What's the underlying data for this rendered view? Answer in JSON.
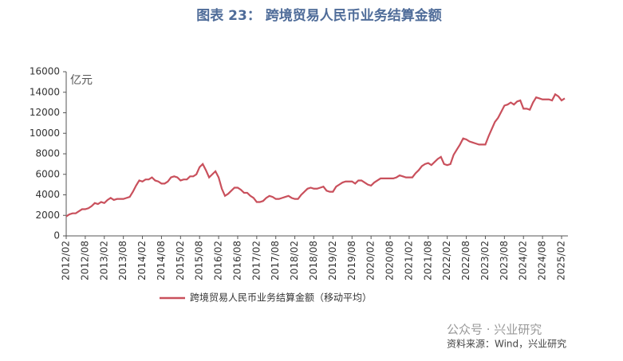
{
  "chart_data": {
    "type": "line",
    "title": "图表 23：  跨境贸易人民币业务结算金额",
    "y_unit": "亿元",
    "source": "资料来源：Wind，兴业研究",
    "watermark": "公众号 · 兴业研究",
    "categories": [
      "2012/02",
      null,
      null,
      null,
      null,
      null,
      "2012/08",
      null,
      null,
      null,
      null,
      null,
      "2013/02",
      null,
      null,
      null,
      null,
      null,
      "2013/08",
      null,
      null,
      null,
      null,
      null,
      "2014/02",
      null,
      null,
      null,
      null,
      null,
      "2014/08",
      null,
      null,
      null,
      null,
      null,
      "2015/02",
      null,
      null,
      null,
      null,
      null,
      "2015/08",
      null,
      null,
      null,
      null,
      null,
      "2016/02",
      null,
      null,
      null,
      null,
      null,
      "2016/08",
      null,
      null,
      null,
      null,
      null,
      "2017/02",
      null,
      null,
      null,
      null,
      null,
      "2017/08",
      null,
      null,
      null,
      null,
      null,
      "2018/02",
      null,
      null,
      null,
      null,
      null,
      "2018/08",
      null,
      null,
      null,
      null,
      null,
      "2019/02",
      null,
      null,
      null,
      null,
      null,
      "2019/08",
      null,
      null,
      null,
      null,
      null,
      "2020/02",
      null,
      null,
      null,
      null,
      null,
      "2020/08",
      null,
      null,
      null,
      null,
      null,
      "2021/02",
      null,
      null,
      null,
      null,
      null,
      "2021/08",
      null,
      null,
      null,
      null,
      null,
      "2022/02",
      null,
      null,
      null,
      null,
      null,
      "2022/08",
      null,
      null,
      null,
      null,
      null,
      "2023/02",
      null,
      null,
      null,
      null,
      null,
      "2023/08",
      null,
      null,
      null,
      null,
      null,
      "2024/02",
      null,
      null,
      null,
      null,
      null,
      "2024/08",
      null,
      null,
      null,
      null,
      null,
      "2025/02",
      null
    ],
    "series": [
      {
        "name": "跨境贸易人民币业务结算金额（移动平均）",
        "color": "#c9505c",
        "values": [
          1900,
          2100,
          2200,
          2200,
          2400,
          2600,
          2600,
          2700,
          2900,
          3200,
          3100,
          3300,
          3200,
          3500,
          3700,
          3500,
          3600,
          3600,
          3600,
          3700,
          3800,
          4300,
          4900,
          5400,
          5300,
          5500,
          5500,
          5700,
          5400,
          5300,
          5100,
          5100,
          5300,
          5700,
          5800,
          5700,
          5400,
          5500,
          5500,
          5800,
          5800,
          6000,
          6700,
          7000,
          6400,
          5700,
          6000,
          6300,
          5700,
          4600,
          3900,
          4100,
          4400,
          4700,
          4700,
          4500,
          4200,
          4200,
          3900,
          3700,
          3300,
          3300,
          3400,
          3700,
          3900,
          3800,
          3600,
          3600,
          3700,
          3800,
          3900,
          3700,
          3600,
          3600,
          4000,
          4300,
          4600,
          4700,
          4600,
          4600,
          4700,
          4800,
          4400,
          4300,
          4300,
          4800,
          5000,
          5200,
          5300,
          5300,
          5300,
          5100,
          5400,
          5400,
          5200,
          5000,
          4900,
          5200,
          5400,
          5600,
          5600,
          5600,
          5600,
          5600,
          5700,
          5900,
          5800,
          5700,
          5700,
          5700,
          6100,
          6400,
          6800,
          7000,
          7100,
          6900,
          7200,
          7500,
          7700,
          7000,
          6900,
          7000,
          7900,
          8400,
          8900,
          9500,
          9400,
          9200,
          9100,
          9000,
          8900,
          8900,
          8900,
          9700,
          10400,
          11100,
          11500,
          12100,
          12700,
          12800,
          13000,
          12800,
          13100,
          13200,
          12400,
          12400,
          12300,
          13000,
          13500,
          13400,
          13300,
          13300,
          13300,
          13200,
          13800,
          13600,
          13200,
          13400
        ]
      }
    ],
    "ylim": [
      0,
      16000
    ],
    "yticks": [
      0,
      2000,
      4000,
      6000,
      8000,
      10000,
      12000,
      14000,
      16000
    ],
    "grid": false
  }
}
